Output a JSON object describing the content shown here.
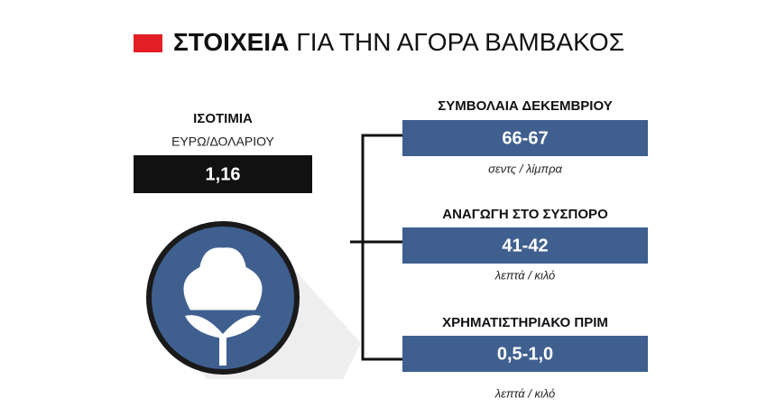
{
  "header": {
    "title_bold": "ΣΤΟΙΧΕΙΑ",
    "title_rest": "ΓΙΑ ΤΗΝ ΑΓΟΡΑ ΒΑΜΒΑΚΟΣ"
  },
  "exchange_rate": {
    "label": "ΙΣΟΤΙΜΙΑ",
    "sublabel": "ΕΥΡΩ/ΔΟΛΑΡΙΟΥ",
    "value": "1,16"
  },
  "items": [
    {
      "title": "ΣΥΜΒΟΛΑΙΑ ΔΕΚΕΜΒΡΙΟΥ",
      "value": "66-67",
      "unit": "σεντς / λίμπρα"
    },
    {
      "title": "ΑΝΑΓΩΓΗ ΣΤΟ ΣΥΣΠΟΡΟ",
      "value": "41-42",
      "unit": "λεπτά / κιλό"
    },
    {
      "title": "ΧΡΗΜΑΤΙΣΤΗΡΙΑΚΟ ΠΡΙΜ",
      "value": "0,5-1,0",
      "unit": "λεπτά / κιλό"
    }
  ]
}
